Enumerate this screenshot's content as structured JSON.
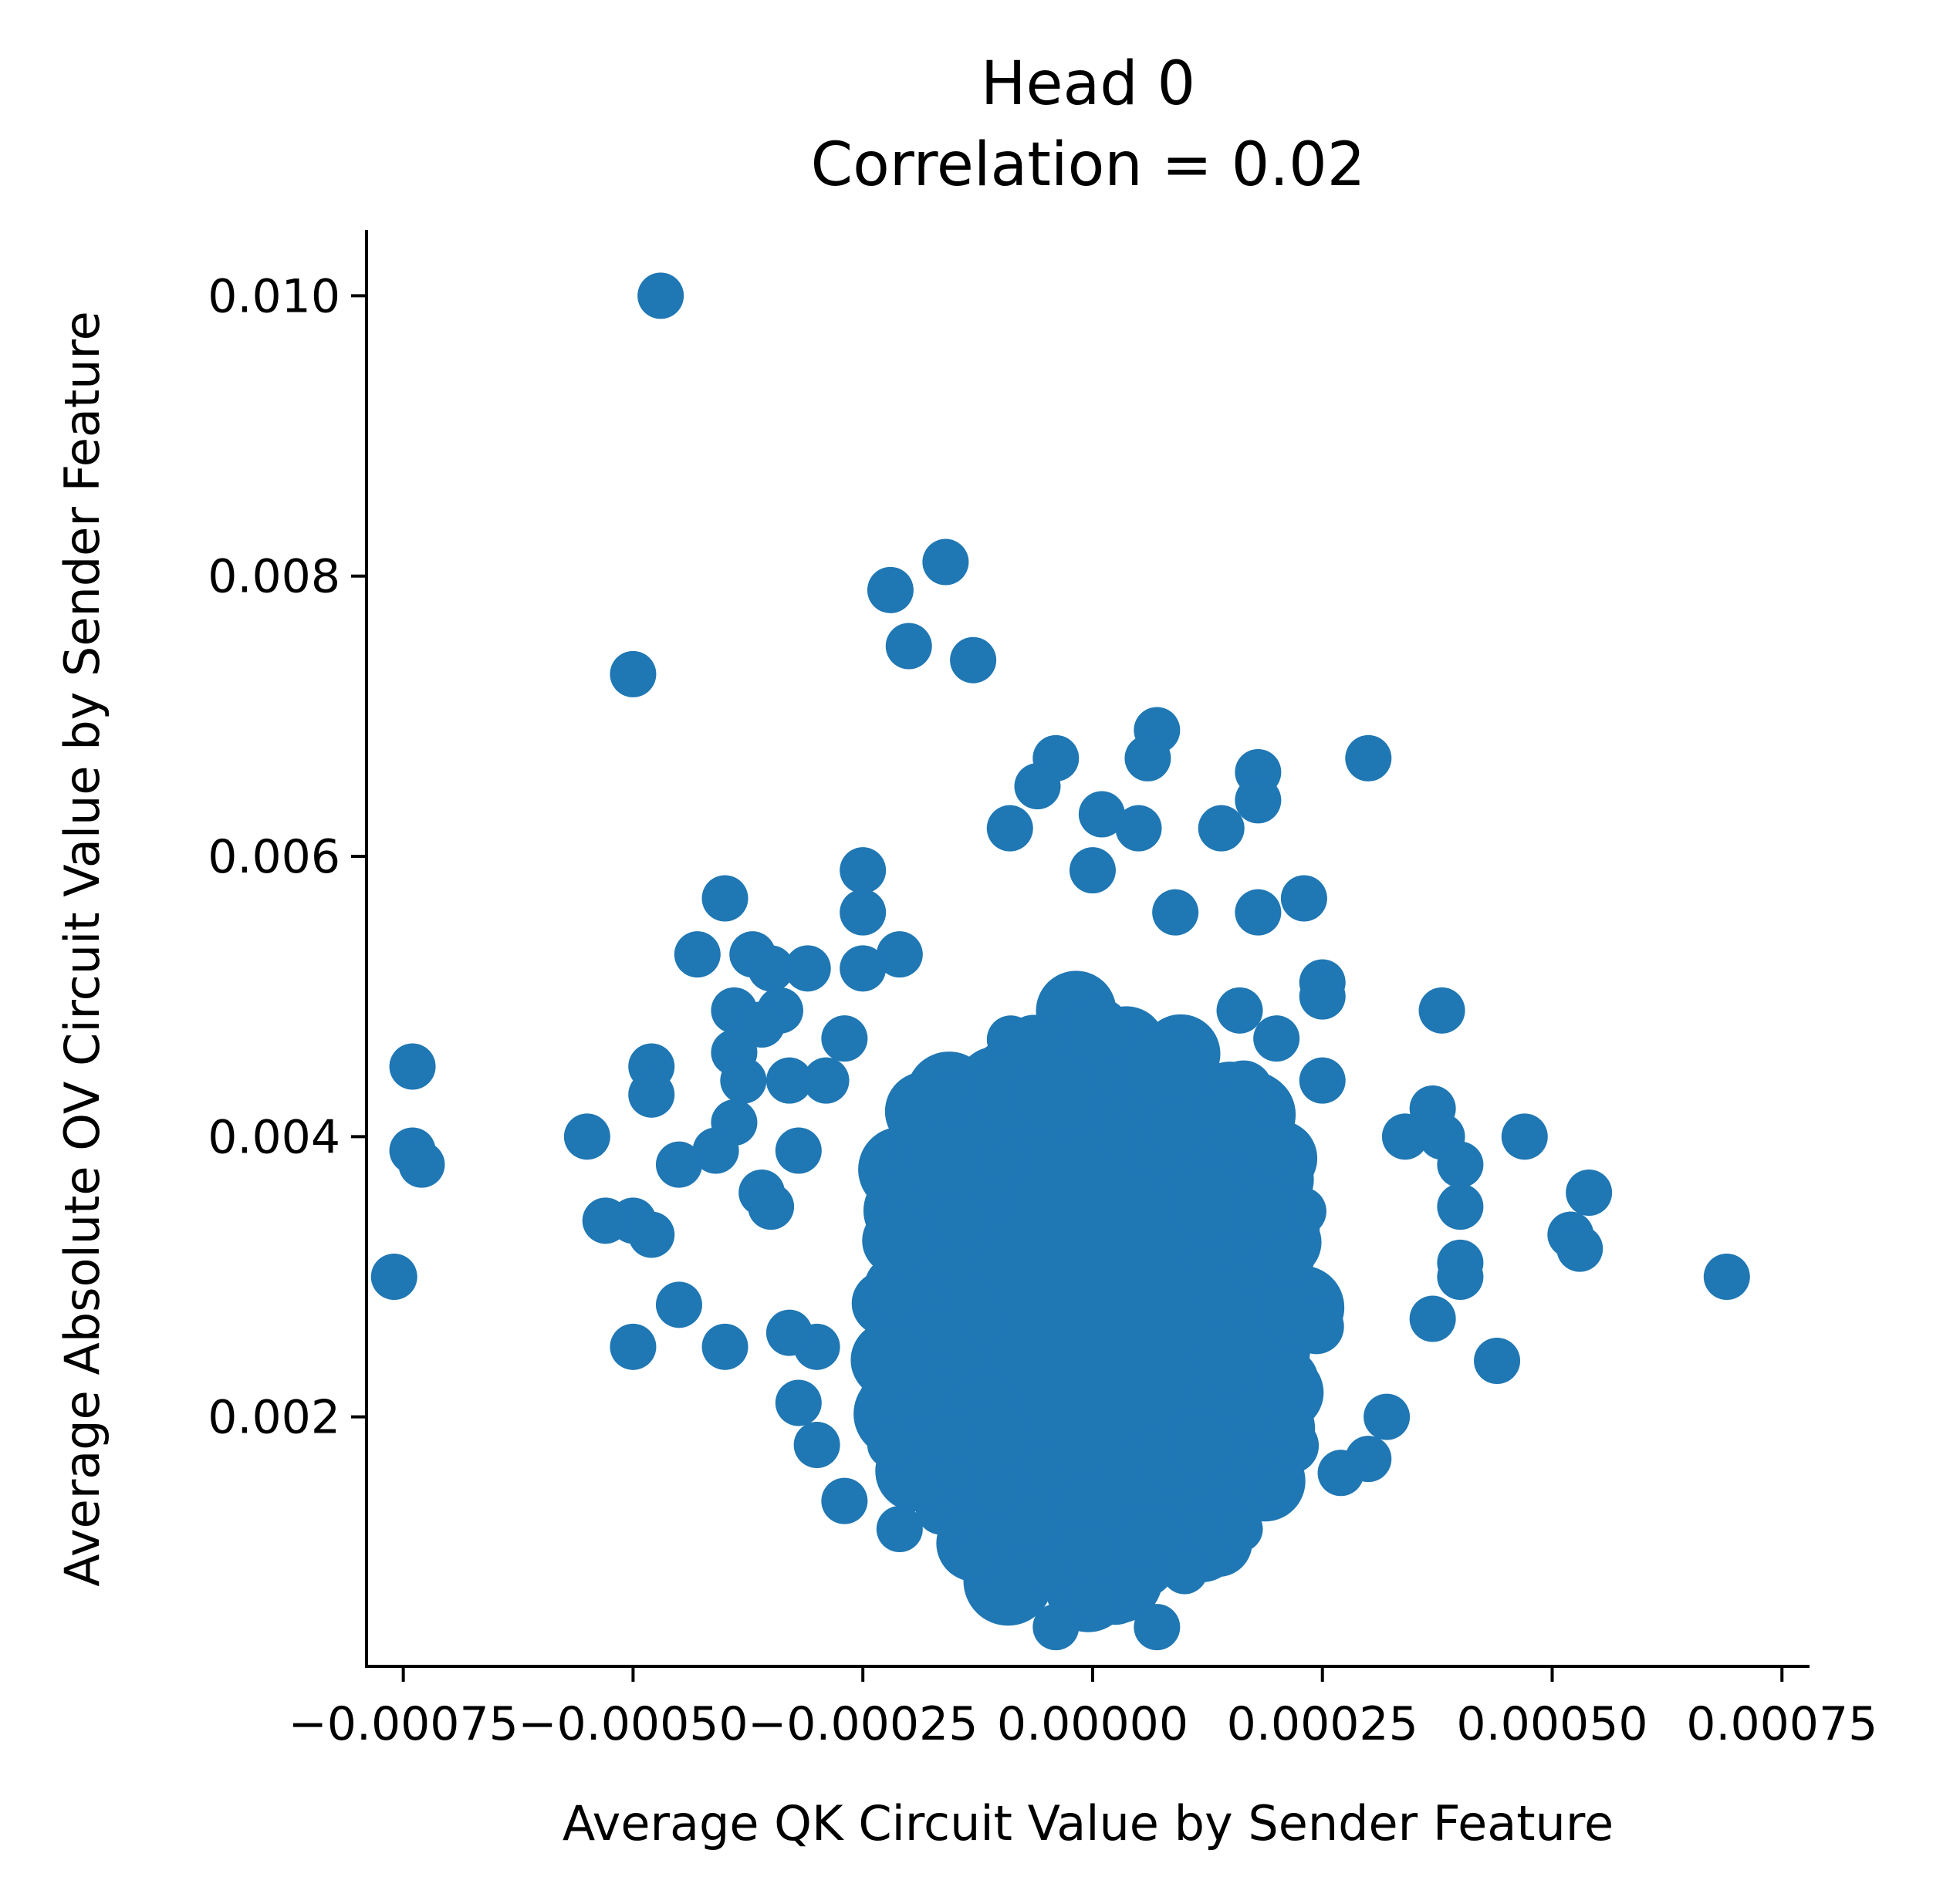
{
  "chart_data": {
    "type": "scatter",
    "title_lines": [
      "Head 0",
      "Correlation = 0.02"
    ],
    "xlabel": "Average QK Circuit Value by Sender Feature",
    "ylabel": "Average Absolute OV Circuit Value by Sender Feature",
    "xlim": [
      -0.00079,
      0.00078
    ],
    "ylim": [
      0.00022,
      0.01047
    ],
    "x_ticks": [
      -0.00075,
      -0.0005,
      -0.00025,
      0.0,
      0.00025,
      0.0005,
      0.00075
    ],
    "x_tick_labels": [
      "−0.00075",
      "−0.00050",
      "−0.00025",
      "0.00000",
      "0.00025",
      "0.00050",
      "0.00075"
    ],
    "y_ticks": [
      0.002,
      0.004,
      0.006,
      0.008,
      0.01
    ],
    "y_tick_labels": [
      "0.002",
      "0.004",
      "0.006",
      "0.008",
      "0.010"
    ],
    "grid": false,
    "color": "#1f77b4",
    "dense_cluster": {
      "note_values": "core region of heavily overlapping points",
      "x_center": 0.0,
      "y_center": 0.0028,
      "x_halfwidth": 0.00024,
      "y_halfwidth": 0.0021
    },
    "points": [
      [
        -0.00047,
        0.01
      ],
      [
        -0.00016,
        0.0081
      ],
      [
        -0.00022,
        0.0079
      ],
      [
        -0.0002,
        0.0075
      ],
      [
        -0.00013,
        0.0074
      ],
      [
        -0.0005,
        0.0073
      ],
      [
        7e-05,
        0.0069
      ],
      [
        6e-05,
        0.0067
      ],
      [
        -4e-05,
        0.0067
      ],
      [
        0.00018,
        0.0066
      ],
      [
        0.0003,
        0.0067
      ],
      [
        -6e-05,
        0.0065
      ],
      [
        0.00018,
        0.0064
      ],
      [
        0.00014,
        0.0062
      ],
      [
        1e-05,
        0.0063
      ],
      [
        5e-05,
        0.0062
      ],
      [
        -9e-05,
        0.0062
      ],
      [
        0.0,
        0.0059
      ],
      [
        -0.00025,
        0.0059
      ],
      [
        -0.00025,
        0.0056
      ],
      [
        -0.0004,
        0.0057
      ],
      [
        0.00018,
        0.0056
      ],
      [
        0.00023,
        0.0057
      ],
      [
        9e-05,
        0.0056
      ],
      [
        -0.00043,
        0.0053
      ],
      [
        -0.00037,
        0.0053
      ],
      [
        -0.00035,
        0.0052
      ],
      [
        -0.00031,
        0.0052
      ],
      [
        -0.00021,
        0.0053
      ],
      [
        -0.00025,
        0.0052
      ],
      [
        0.00025,
        0.0051
      ],
      [
        0.00025,
        0.005
      ],
      [
        0.00038,
        0.0049
      ],
      [
        -0.00039,
        0.0049
      ],
      [
        -0.00034,
        0.0049
      ],
      [
        -0.00036,
        0.0048
      ],
      [
        0.00016,
        0.0049
      ],
      [
        0.0002,
        0.0047
      ],
      [
        -0.00027,
        0.0047
      ],
      [
        -0.00039,
        0.0046
      ],
      [
        -0.00048,
        0.0045
      ],
      [
        -0.00074,
        0.0045
      ],
      [
        -0.00048,
        0.0043
      ],
      [
        -0.00038,
        0.0044
      ],
      [
        -0.00033,
        0.0044
      ],
      [
        -0.00029,
        0.0044
      ],
      [
        0.00025,
        0.0044
      ],
      [
        -0.00039,
        0.0041
      ],
      [
        0.00037,
        0.0042
      ],
      [
        0.00047,
        0.004
      ],
      [
        0.00038,
        0.004
      ],
      [
        0.0004,
        0.0038
      ],
      [
        0.00034,
        0.004
      ],
      [
        -0.00055,
        0.004
      ],
      [
        -0.00074,
        0.0039
      ],
      [
        -0.00073,
        0.0038
      ],
      [
        -0.00041,
        0.0039
      ],
      [
        -0.00032,
        0.0039
      ],
      [
        -0.00045,
        0.0038
      ],
      [
        -0.00036,
        0.0036
      ],
      [
        -0.00035,
        0.0035
      ],
      [
        0.0004,
        0.0035
      ],
      [
        0.00054,
        0.0036
      ],
      [
        -0.0005,
        0.0034
      ],
      [
        -0.00053,
        0.0034
      ],
      [
        -0.00048,
        0.0033
      ],
      [
        0.00052,
        0.0033
      ],
      [
        0.00053,
        0.0032
      ],
      [
        0.0004,
        0.0031
      ],
      [
        0.0004,
        0.003
      ],
      [
        -0.00076,
        0.003
      ],
      [
        0.00069,
        0.003
      ],
      [
        -0.00045,
        0.0028
      ],
      [
        0.00037,
        0.0027
      ],
      [
        -0.0003,
        0.0025
      ],
      [
        -0.0004,
        0.0025
      ],
      [
        -0.0005,
        0.0025
      ],
      [
        0.00044,
        0.0024
      ],
      [
        -0.00033,
        0.0026
      ],
      [
        0.00032,
        0.002
      ],
      [
        -0.00032,
        0.0021
      ],
      [
        -0.0003,
        0.0018
      ],
      [
        -0.00022,
        0.0018
      ],
      [
        0.0003,
        0.0017
      ],
      [
        0.00027,
        0.0016
      ],
      [
        0.0002,
        0.0015
      ],
      [
        -0.00027,
        0.0014
      ],
      [
        -0.00021,
        0.0012
      ],
      [
        0.00016,
        0.0012
      ],
      [
        -0.00013,
        0.001
      ],
      [
        -4e-05,
        0.0005
      ],
      [
        7e-05,
        0.0005
      ],
      [
        0.0,
        0.0007
      ],
      [
        5e-05,
        0.0008
      ],
      [
        -5e-05,
        0.0009
      ],
      [
        0.0001,
        0.0009
      ]
    ]
  }
}
